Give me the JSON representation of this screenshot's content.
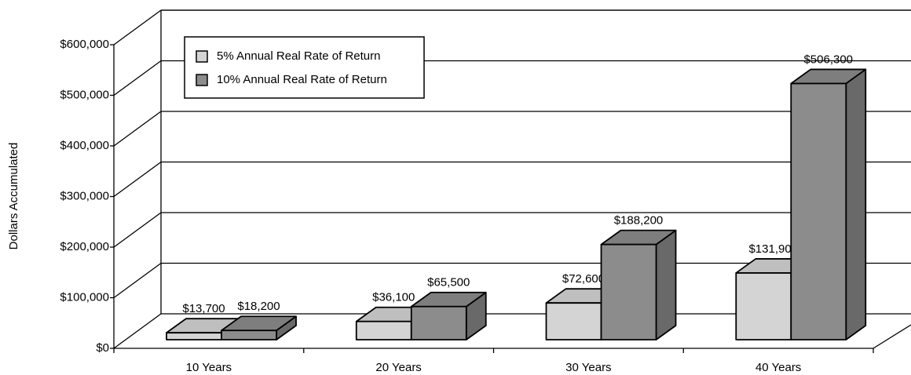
{
  "chart_data": {
    "type": "bar3d",
    "ylabel": "Dollars Accumulated",
    "categories": [
      "10 Years",
      "20 Years",
      "30 Years",
      "40 Years"
    ],
    "series": [
      {
        "name": "5% Annual Real Rate of Return",
        "color": "#d4d4d4",
        "values": [
          13700,
          36100,
          72600,
          131900
        ],
        "value_labels": [
          "$13,700",
          "$36,100",
          "$72,600",
          "$131,900"
        ]
      },
      {
        "name": "10% Annual Real Rate of Return",
        "color": "#8c8c8c",
        "values": [
          18200,
          65500,
          188200,
          506300
        ],
        "value_labels": [
          "$18,200",
          "$65,500",
          "$188,200",
          "$506,300"
        ]
      }
    ],
    "ylim": [
      0,
      600000
    ],
    "yticks": [
      {
        "value": 0,
        "label": "$0"
      },
      {
        "value": 100000,
        "label": "$100,000"
      },
      {
        "value": 200000,
        "label": "$200,000"
      },
      {
        "value": 300000,
        "label": "$300,000"
      },
      {
        "value": 400000,
        "label": "$400,000"
      },
      {
        "value": 500000,
        "label": "$500,000"
      },
      {
        "value": 600000,
        "label": "$600,000"
      }
    ],
    "grid": true
  }
}
